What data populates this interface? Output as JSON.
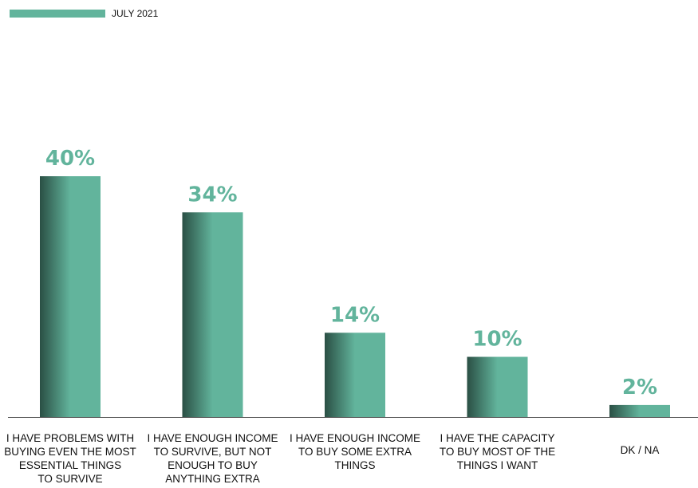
{
  "legend": {
    "label": "JULY 2021",
    "color": "#62b49c"
  },
  "colors": {
    "bar_light": "#62b49c",
    "bar_dark": "#2a4f44",
    "value_label": "#62b49c",
    "axis": "#555555"
  },
  "chart_data": {
    "type": "bar",
    "categories": [
      [
        "I HAVE PROBLEMS WITH",
        "BUYING EVEN THE MOST",
        "ESSENTIAL THINGS",
        "TO SURVIVE"
      ],
      [
        "I HAVE ENOUGH INCOME",
        "TO SURVIVE, BUT NOT",
        "ENOUGH TO BUY",
        "ANYTHING EXTRA"
      ],
      [
        "I HAVE ENOUGH INCOME",
        "TO BUY SOME EXTRA",
        "THINGS"
      ],
      [
        "I HAVE THE CAPACITY",
        "TO BUY MOST OF THE",
        "THINGS I WANT"
      ],
      [
        "DK / NA"
      ]
    ],
    "series": [
      {
        "name": "JULY 2021",
        "values": [
          40,
          34,
          14,
          10,
          2
        ]
      }
    ],
    "value_labels": [
      "40%",
      "34%",
      "14%",
      "10%",
      "2%"
    ],
    "ylim": [
      0,
      40
    ],
    "grid": false,
    "legend_position": "top-left"
  }
}
